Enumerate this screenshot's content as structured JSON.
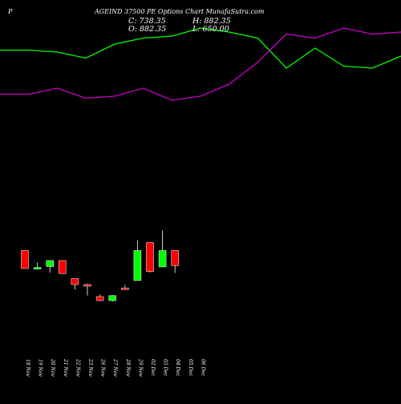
{
  "header": {
    "symbol_prefix": "P",
    "title": "AGEIND 37500 PE Options Chart MunafaSutra.com",
    "close": "C: 738.35",
    "high": "H: 882.35",
    "open": "O: 882.35",
    "low": "L: 650.00"
  },
  "chart_data": {
    "type": "candlestick",
    "categories": [
      "18 Nov",
      "19 Nov",
      "20 Nov",
      "21 Nov",
      "22 Nov",
      "25 Nov",
      "26 Nov",
      "27 Nov",
      "28 Nov",
      "29 Nov",
      "02 Dec",
      "03 Dec",
      "04 Dec",
      "05 Dec",
      "06 Dec"
    ],
    "candles": [
      {
        "x": "18 Nov",
        "open": 1050,
        "close": 960,
        "high": 1050,
        "low": 960,
        "color": "red"
      },
      {
        "x": "19 Nov",
        "open": 960,
        "close": 965,
        "high": 990,
        "low": 955,
        "color": "green"
      },
      {
        "x": "20 Nov",
        "open": 970,
        "close": 1000,
        "high": 1000,
        "low": 940,
        "color": "green"
      },
      {
        "x": "21 Nov",
        "open": 1000,
        "close": 935,
        "high": 1000,
        "low": 935,
        "color": "red"
      },
      {
        "x": "22 Nov",
        "open": 910,
        "close": 880,
        "high": 910,
        "low": 855,
        "color": "red"
      },
      {
        "x": "25 Nov",
        "open": 880,
        "close": 873,
        "high": 885,
        "low": 825,
        "color": "red"
      },
      {
        "x": "26 Nov",
        "open": 820,
        "close": 800,
        "high": 830,
        "low": 797,
        "color": "red"
      },
      {
        "x": "27 Nov",
        "open": 800,
        "close": 825,
        "high": 828,
        "low": 795,
        "color": "green"
      },
      {
        "x": "28 Nov",
        "open": 863,
        "close": 860,
        "high": 878,
        "low": 858,
        "color": "red"
      },
      {
        "x": "29 Nov",
        "open": 900,
        "close": 1050,
        "high": 1100,
        "low": 900,
        "color": "green"
      },
      {
        "x": "02 Dec",
        "open": 1090,
        "close": 945,
        "high": 1090,
        "low": 940,
        "color": "red"
      },
      {
        "x": "03 Dec",
        "open": 968,
        "close": 1050,
        "high": 1150,
        "low": 968,
        "color": "green"
      },
      {
        "x": "04 Dec",
        "open": 1050,
        "close": 975,
        "high": 1050,
        "low": 938,
        "color": "red"
      }
    ],
    "line_series": [
      {
        "color": "#00ff00",
        "values": [
          2050,
          2050,
          2040,
          2010,
          2080,
          2110,
          2120,
          2160,
          2140,
          2110,
          1960,
          2060,
          1970,
          1960,
          2020
        ]
      },
      {
        "color": "#cc00cc",
        "values": [
          1830,
          1830,
          1860,
          1810,
          1820,
          1860,
          1800,
          1820,
          1880,
          1990,
          2130,
          2110,
          2160,
          2130,
          2140
        ]
      }
    ],
    "price_range": [
      2300,
      300
    ],
    "grid": false,
    "colors": {
      "background": "#000000",
      "up": "#00ff00",
      "down": "#ff0000",
      "wick": "#ffffff"
    }
  }
}
